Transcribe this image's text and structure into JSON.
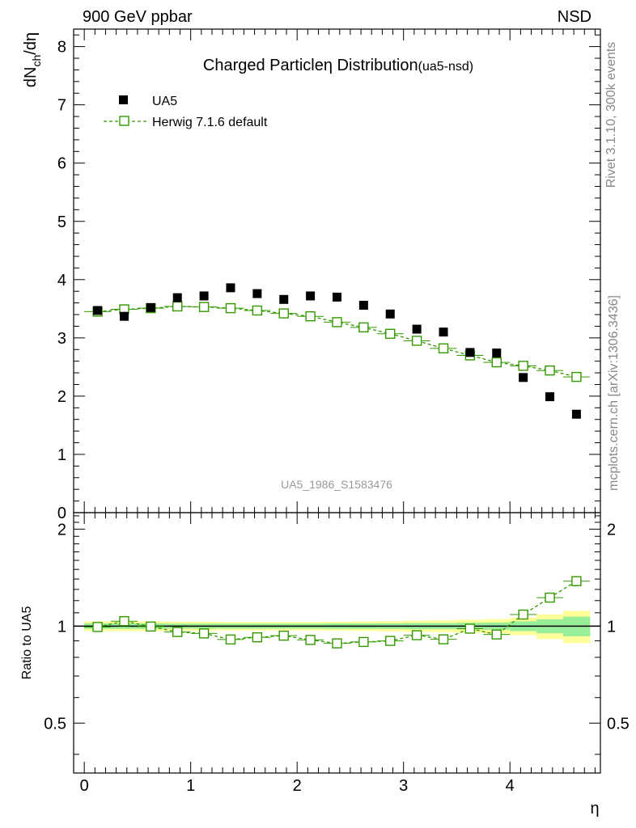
{
  "header": {
    "left": "900 GeV ppbar",
    "right": "NSD"
  },
  "side_labels": {
    "rivet": "Rivet 3.1.10,  300k events",
    "mcplots": "mcplots.cern.ch [arXiv:1306.3436]"
  },
  "chart_data": {
    "type": "scatter",
    "title_main": "Charged Particle",
    "title_symbol": "η",
    "title_rest": " Distribution",
    "title_small": "(ua5-nsd)",
    "watermark": "UA5_1986_S1583476",
    "xlabel": "η",
    "ylabel_main": "dN",
    "ylabel_sub": "ch",
    "ylabel_rest": "/dη",
    "ratio_ylabel": "Ratio to UA5",
    "xlim": [
      -0.1,
      4.85
    ],
    "ylim": [
      0,
      8.3
    ],
    "ratio_ylim": [
      0.35,
      2.25
    ],
    "x_ticks": [
      0,
      1,
      2,
      3,
      4
    ],
    "y_ticks": [
      0,
      1,
      2,
      3,
      4,
      5,
      6,
      7,
      8
    ],
    "ratio_y_ticks": [
      0.5,
      1,
      2
    ],
    "ratio_y_tick_labels": [
      "0.5",
      "1",
      "2"
    ],
    "legend": {
      "placement": "top-left",
      "entries": [
        "UA5",
        "Herwig 7.1.6 default"
      ]
    },
    "x": [
      0.125,
      0.375,
      0.625,
      0.875,
      1.125,
      1.375,
      1.625,
      1.875,
      2.125,
      2.375,
      2.625,
      2.875,
      3.125,
      3.375,
      3.625,
      3.875,
      4.125,
      4.375,
      4.625
    ],
    "bin_half_width": 0.125,
    "series": [
      {
        "name": "UA5",
        "color": "#000000",
        "marker": "filled-square",
        "values": [
          3.47,
          3.37,
          3.52,
          3.69,
          3.72,
          3.86,
          3.76,
          3.66,
          3.72,
          3.7,
          3.56,
          3.41,
          3.15,
          3.1,
          2.75,
          2.74,
          2.32,
          1.99,
          1.69
        ]
      },
      {
        "name": "Herwig 7.1.6 default",
        "color": "#339900",
        "marker": "open-square",
        "line": "dashed",
        "values": [
          3.45,
          3.49,
          3.51,
          3.54,
          3.53,
          3.51,
          3.47,
          3.42,
          3.37,
          3.27,
          3.18,
          3.07,
          2.95,
          2.82,
          2.7,
          2.58,
          2.52,
          2.44,
          2.33
        ]
      }
    ],
    "ratio": {
      "reference_color": "#000000",
      "band_inner_color": "#99ee99",
      "band_outer_color": "#ffff99",
      "band_inner_halfwidth": [
        0.02,
        0.02,
        0.02,
        0.018,
        0.018,
        0.018,
        0.018,
        0.018,
        0.018,
        0.02,
        0.02,
        0.02,
        0.022,
        0.022,
        0.024,
        0.026,
        0.035,
        0.05,
        0.07
      ],
      "band_outer_halfwidth": [
        0.035,
        0.035,
        0.035,
        0.032,
        0.032,
        0.03,
        0.03,
        0.03,
        0.03,
        0.032,
        0.034,
        0.036,
        0.04,
        0.042,
        0.046,
        0.052,
        0.062,
        0.088,
        0.115
      ],
      "values": [
        0.994,
        1.036,
        0.997,
        0.959,
        0.949,
        0.909,
        0.923,
        0.934,
        0.906,
        0.884,
        0.893,
        0.9,
        0.937,
        0.91,
        0.982,
        0.942,
        1.086,
        1.226,
        1.379
      ]
    }
  }
}
